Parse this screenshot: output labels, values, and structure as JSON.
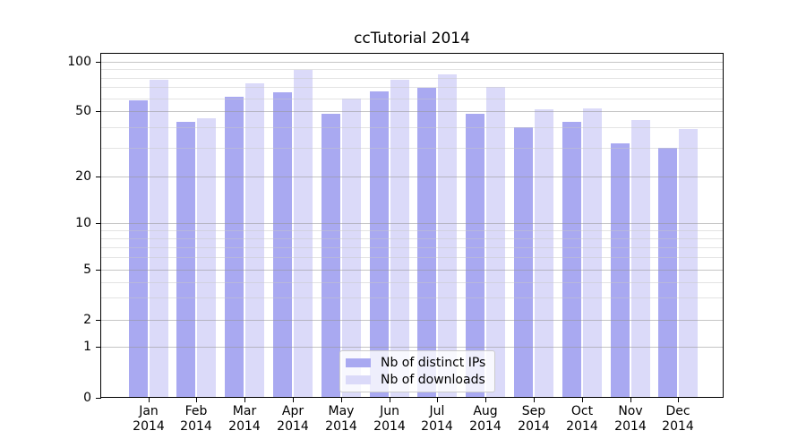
{
  "chart_data": {
    "type": "bar",
    "title": "ccTutorial 2014",
    "categories": [
      "Jan",
      "Feb",
      "Mar",
      "Apr",
      "May",
      "Jun",
      "Jul",
      "Aug",
      "Sep",
      "Oct",
      "Nov",
      "Dec"
    ],
    "category_year": "2014",
    "series": [
      {
        "name": "Nb of distinct IPs",
        "color": "#a9a9f1",
        "values": [
          58,
          43,
          61,
          65,
          48,
          66,
          69,
          48,
          40,
          43,
          32,
          30
        ]
      },
      {
        "name": "Nb of downloads",
        "color": "#dbdaf9",
        "values": [
          78,
          45,
          74,
          89,
          60,
          78,
          84,
          70,
          51,
          52,
          44,
          39
        ]
      }
    ],
    "xlabel": "",
    "ylabel": "",
    "yscale": "symlog",
    "ylim": [
      0,
      113
    ],
    "y_ticks": [
      0,
      1,
      2,
      5,
      10,
      20,
      50,
      100
    ],
    "y_tick_labels": [
      "0",
      "1",
      "2",
      "5",
      "10",
      "20",
      "50",
      "100"
    ],
    "y_major_gridlines": [
      1,
      2,
      5,
      10,
      20,
      50,
      100
    ],
    "y_minor_gridlines": [
      3,
      4,
      6,
      7,
      8,
      9,
      30,
      40,
      60,
      70,
      80,
      90
    ],
    "grid": true,
    "legend_position": "lower center"
  },
  "colors": {
    "background": "#ffffff",
    "spine": "#000000",
    "major_grid": "rgba(150,150,150,0.55)",
    "minor_grid": "rgba(200,200,200,0.5)",
    "legend_border": "#cccccc"
  }
}
